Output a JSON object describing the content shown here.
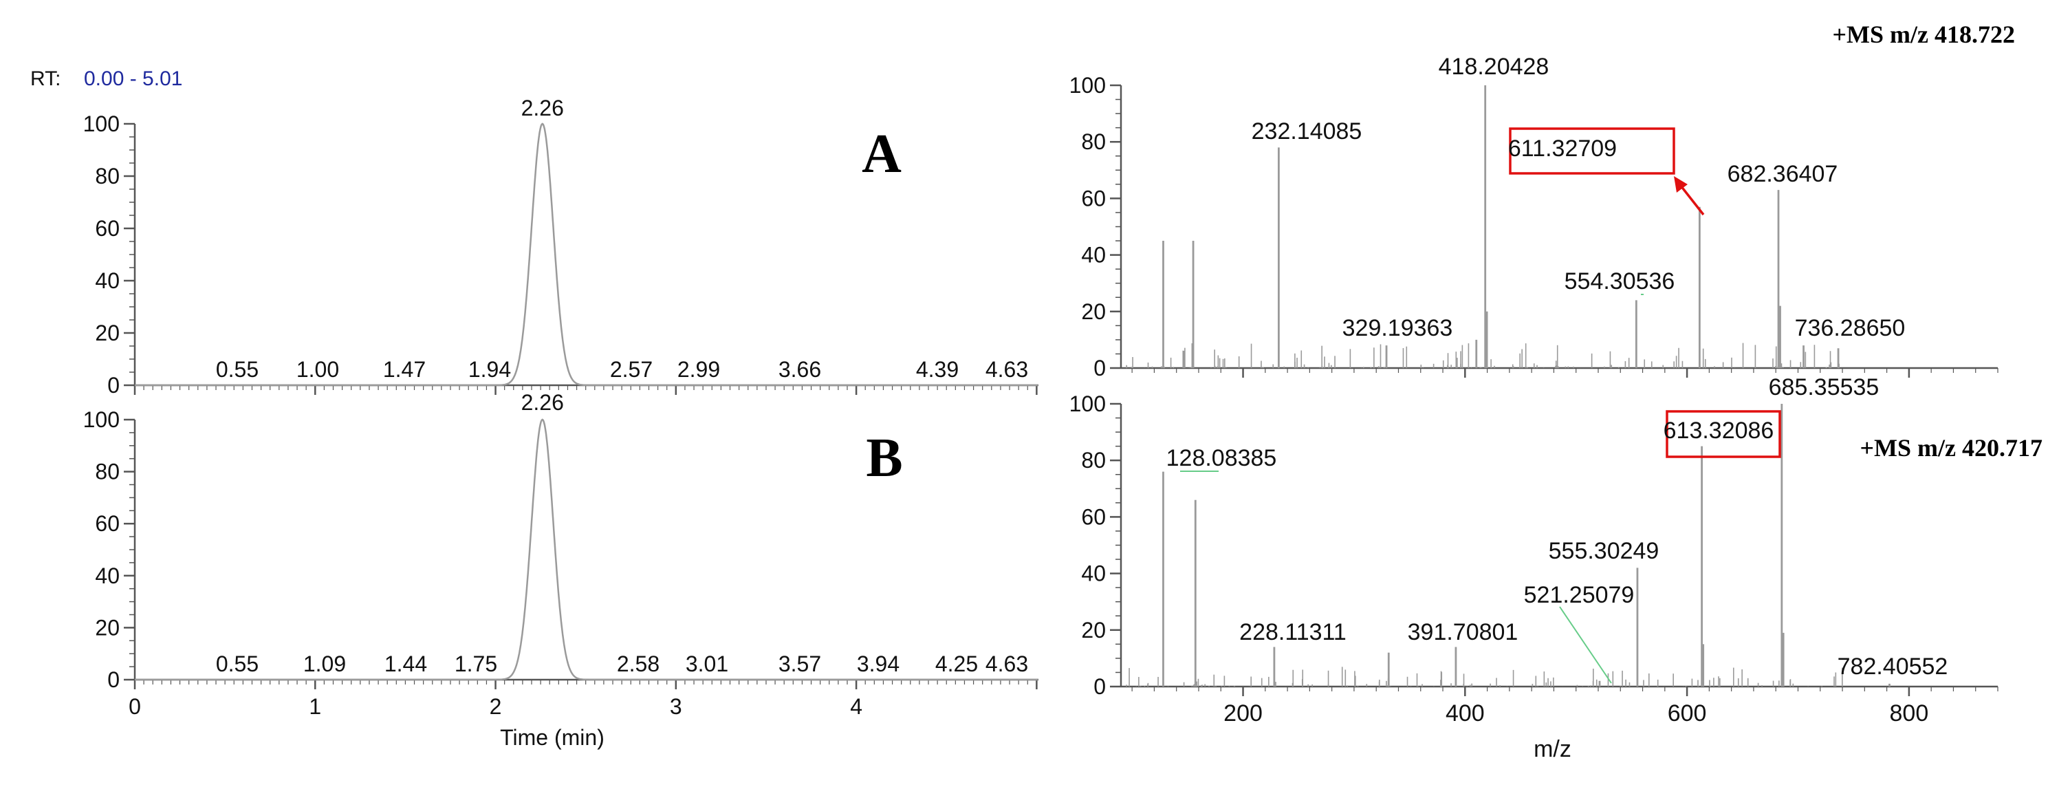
{
  "header": {
    "rt_label": "RT:",
    "rt_range": "0.00 - 5.01",
    "rt_range_color": "#1f2a9e"
  },
  "colors": {
    "trace": "#9a9a9a",
    "axis": "#555555",
    "text": "#111111",
    "callout": "#e01010",
    "leader": "#66cc88"
  },
  "chart_data": [
    {
      "id": "chrom-A",
      "type": "line",
      "panel_label": "A",
      "xlim": [
        0,
        5.01
      ],
      "ylim": [
        0,
        100
      ],
      "y_ticks": [
        0,
        20,
        40,
        60,
        80,
        100
      ],
      "x_ticks": [],
      "xlabel": "",
      "peaks": [
        {
          "x": 2.26,
          "y": 100,
          "width": 0.06
        }
      ],
      "rt_labels": [
        "0.55",
        "1.00",
        "1.47",
        "1.94",
        "2.57",
        "2.99",
        "3.66",
        "4.39",
        "4.63"
      ],
      "apex_label": "2.26"
    },
    {
      "id": "chrom-B",
      "type": "line",
      "panel_label": "B",
      "xlim": [
        0,
        5.01
      ],
      "ylim": [
        0,
        100
      ],
      "y_ticks": [
        0,
        20,
        40,
        60,
        80,
        100
      ],
      "x_ticks": [
        0,
        1,
        2,
        3,
        4
      ],
      "xlabel": "Time (min)",
      "peaks": [
        {
          "x": 2.26,
          "y": 100,
          "width": 0.06
        }
      ],
      "rt_labels": [
        "0.55",
        "1.09",
        "1.44",
        "1.75",
        "2.58",
        "3.01",
        "3.57",
        "3.94",
        "4.25",
        "4.63"
      ],
      "apex_label": "2.26"
    },
    {
      "id": "ms-top",
      "type": "bar",
      "title": "+MS m/z 418.722",
      "xlim": [
        90,
        880
      ],
      "ylim": [
        0,
        100
      ],
      "y_ticks": [
        0,
        20,
        40,
        60,
        80,
        100
      ],
      "x_ticks": [],
      "xlabel": "",
      "peaks": [
        {
          "mz": 128.1,
          "y": 45
        },
        {
          "mz": 155.1,
          "y": 45
        },
        {
          "mz": 232.14085,
          "y": 78,
          "label": "232.14085"
        },
        {
          "mz": 329.19363,
          "y": 8,
          "label": "329.19363"
        },
        {
          "mz": 410.2,
          "y": 10
        },
        {
          "mz": 418.20428,
          "y": 100,
          "label": "418.20428"
        },
        {
          "mz": 419.7,
          "y": 20
        },
        {
          "mz": 554.30536,
          "y": 24,
          "label": "554.30536"
        },
        {
          "mz": 611.32709,
          "y": 57,
          "label": "611.32709",
          "boxed": true
        },
        {
          "mz": 682.36407,
          "y": 63,
          "label": "682.36407"
        },
        {
          "mz": 683.9,
          "y": 22
        },
        {
          "mz": 705.0,
          "y": 8
        },
        {
          "mz": 736.2865,
          "y": 7,
          "label": "736.28650"
        }
      ]
    },
    {
      "id": "ms-bottom",
      "type": "bar",
      "title": "+MS m/z 420.717",
      "xlim": [
        90,
        880
      ],
      "ylim": [
        0,
        100
      ],
      "y_ticks": [
        0,
        20,
        40,
        60,
        80,
        100
      ],
      "x_ticks": [
        200,
        400,
        600,
        800
      ],
      "xlabel": "m/z",
      "peaks": [
        {
          "mz": 128.08385,
          "y": 76,
          "label": "128.08385"
        },
        {
          "mz": 157.1,
          "y": 66
        },
        {
          "mz": 228.11311,
          "y": 14,
          "label": "228.11311"
        },
        {
          "mz": 331.2,
          "y": 12
        },
        {
          "mz": 391.70801,
          "y": 14,
          "label": "391.70801"
        },
        {
          "mz": 521.25079,
          "y": 2,
          "label": "521.25079"
        },
        {
          "mz": 555.30249,
          "y": 42,
          "label": "555.30249"
        },
        {
          "mz": 613.32086,
          "y": 85,
          "label": "613.32086",
          "boxed": true
        },
        {
          "mz": 614.6,
          "y": 15
        },
        {
          "mz": 685.35535,
          "y": 100,
          "label": "685.35535"
        },
        {
          "mz": 686.8,
          "y": 19
        },
        {
          "mz": 782.40552,
          "y": 1,
          "label": "782.40552"
        }
      ]
    }
  ]
}
